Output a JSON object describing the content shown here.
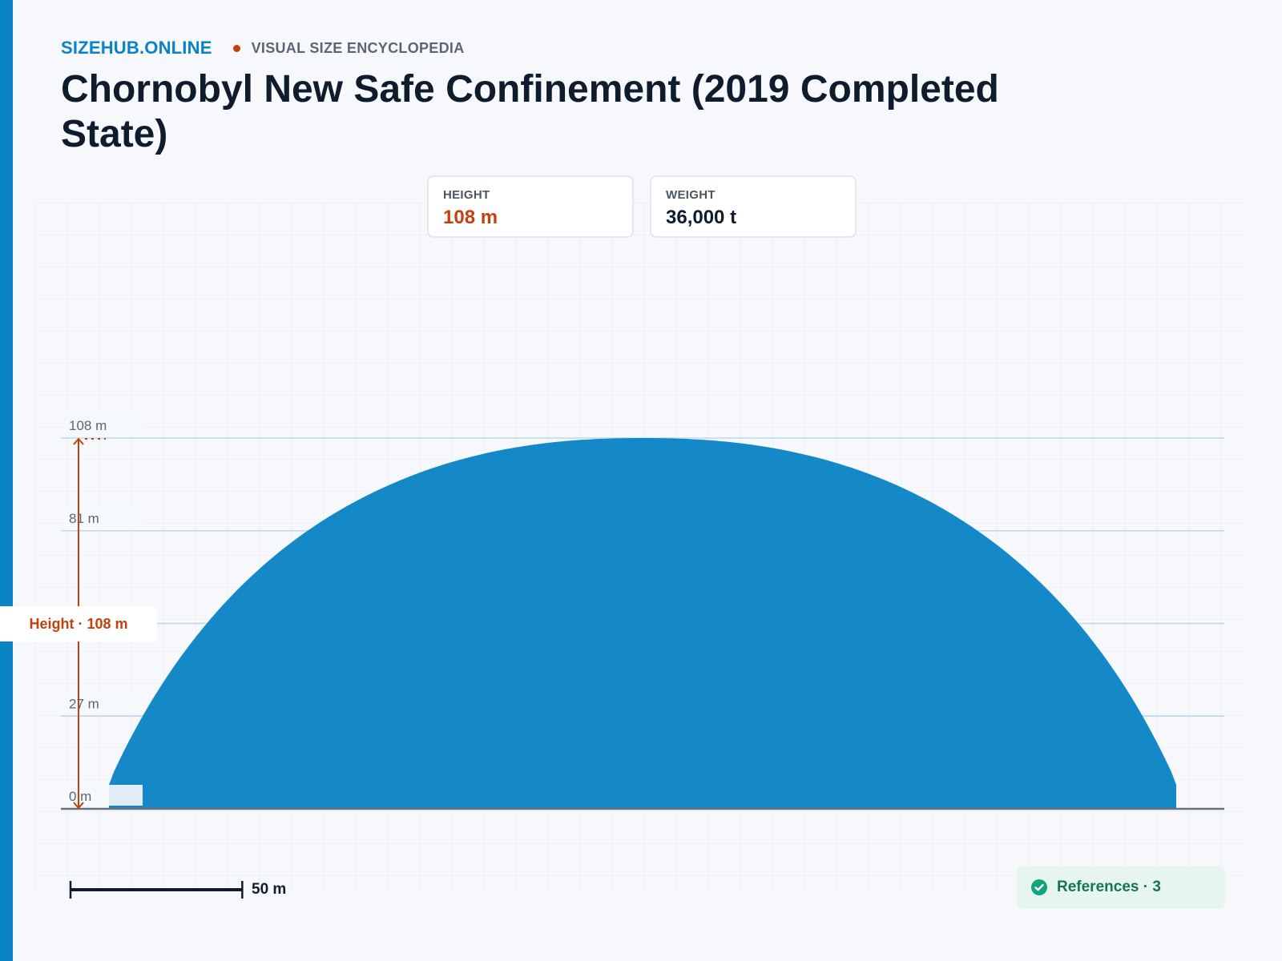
{
  "header": {
    "brand": "SIZEHUB.ONLINE",
    "tagline": "VISUAL SIZE ENCYCLOPEDIA",
    "title": "Chornobyl New Safe Confinement (2019 Completed State)"
  },
  "stats": [
    {
      "label": "HEIGHT",
      "value": "108 m",
      "color": "#c2410c"
    },
    {
      "label": "WEIGHT",
      "value": "36,000 t",
      "color": "#0f1c2e"
    }
  ],
  "diagram": {
    "object_height_m": 108,
    "object_color": "#1589c7",
    "ticks": [
      {
        "value": 0,
        "label": "0 m"
      },
      {
        "value": 27,
        "label": "27 m"
      },
      {
        "value": 54,
        "label": ""
      },
      {
        "value": 81,
        "label": "81 m"
      },
      {
        "value": 108,
        "label": "108 m"
      }
    ],
    "height_annotation": "Height · 108 m",
    "scale_bar_m": 50,
    "scale_bar_label": "50 m"
  },
  "references": {
    "label": "References · 3",
    "icon": "check-circle-icon",
    "color": "#14735a"
  },
  "colors": {
    "accent": "#0a82c6",
    "highlight": "#c2410c",
    "ground": "#6b7280"
  }
}
